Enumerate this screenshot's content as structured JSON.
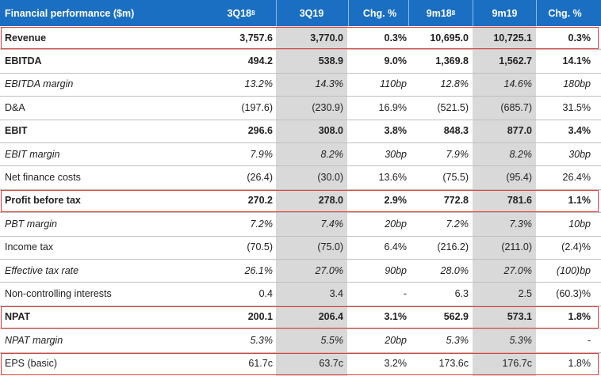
{
  "table": {
    "headers": [
      "Financial performance ($m)",
      "3Q18",
      "3Q19",
      "Chg. %",
      "9m18",
      "9m19",
      "Chg. %"
    ],
    "header_sup": {
      "c1": "8",
      "c4": "8"
    },
    "rows": [
      {
        "label": "Revenue",
        "style": "bold",
        "highlight": true,
        "values": [
          "3,757.6",
          "3,770.0",
          "0.3%",
          "10,695.0",
          "10,725.1",
          "0.3%"
        ]
      },
      {
        "label": "EBITDA",
        "style": "bold",
        "highlight": false,
        "values": [
          "494.2",
          "538.9",
          "9.0%",
          "1,369.8",
          "1,562.7",
          "14.1%"
        ]
      },
      {
        "label": "EBITDA margin",
        "style": "italic",
        "highlight": false,
        "values": [
          "13.2%",
          "14.3%",
          "110bp",
          "12.8%",
          "14.6%",
          "180bp"
        ]
      },
      {
        "label": "D&A",
        "style": "normal",
        "highlight": false,
        "values": [
          "(197.6)",
          "(230.9)",
          "16.9%",
          "(521.5)",
          "(685.7)",
          "31.5%"
        ]
      },
      {
        "label": "EBIT",
        "style": "bold",
        "highlight": false,
        "values": [
          "296.6",
          "308.0",
          "3.8%",
          "848.3",
          "877.0",
          "3.4%"
        ]
      },
      {
        "label": "EBIT margin",
        "style": "italic",
        "highlight": false,
        "values": [
          "7.9%",
          "8.2%",
          "30bp",
          "7.9%",
          "8.2%",
          "30bp"
        ]
      },
      {
        "label": "Net finance costs",
        "style": "normal",
        "highlight": false,
        "values": [
          "(26.4)",
          "(30.0)",
          "13.6%",
          "(75.5)",
          "(95.4)",
          "26.4%"
        ]
      },
      {
        "label": "Profit before tax",
        "style": "bold",
        "highlight": true,
        "values": [
          "270.2",
          "278.0",
          "2.9%",
          "772.8",
          "781.6",
          "1.1%"
        ]
      },
      {
        "label": "PBT margin",
        "style": "italic",
        "highlight": false,
        "values": [
          "7.2%",
          "7.4%",
          "20bp",
          "7.2%",
          "7.3%",
          "10bp"
        ]
      },
      {
        "label": "Income tax",
        "style": "normal",
        "highlight": false,
        "values": [
          "(70.5)",
          "(75.0)",
          "6.4%",
          "(216.2)",
          "(211.0)",
          "(2.4)%"
        ]
      },
      {
        "label": "Effective tax rate",
        "style": "italic",
        "highlight": false,
        "values": [
          "26.1%",
          "27.0%",
          "90bp",
          "28.0%",
          "27.0%",
          "(100)bp"
        ]
      },
      {
        "label": "Non-controlling interests",
        "style": "normal",
        "highlight": false,
        "values": [
          "0.4",
          "3.4",
          "-",
          "6.3",
          "2.5",
          "(60.3)%"
        ]
      },
      {
        "label": "NPAT",
        "style": "bold",
        "highlight": true,
        "values": [
          "200.1",
          "206.4",
          "3.1%",
          "562.9",
          "573.1",
          "1.8%"
        ]
      },
      {
        "label": "NPAT margin",
        "style": "italic",
        "highlight": false,
        "values": [
          "5.3%",
          "5.5%",
          "20bp",
          "5.3%",
          "5.3%",
          "-"
        ]
      },
      {
        "label": "EPS (basic)",
        "style": "normal",
        "highlight": true,
        "values": [
          "61.7c",
          "63.7c",
          "3.2%",
          "173.6c",
          "176.7c",
          "1.8%"
        ]
      }
    ]
  },
  "colors": {
    "header_bg": "#1a6fc2",
    "highlight_border": "#e53935",
    "shade": "#d9d9d9"
  }
}
